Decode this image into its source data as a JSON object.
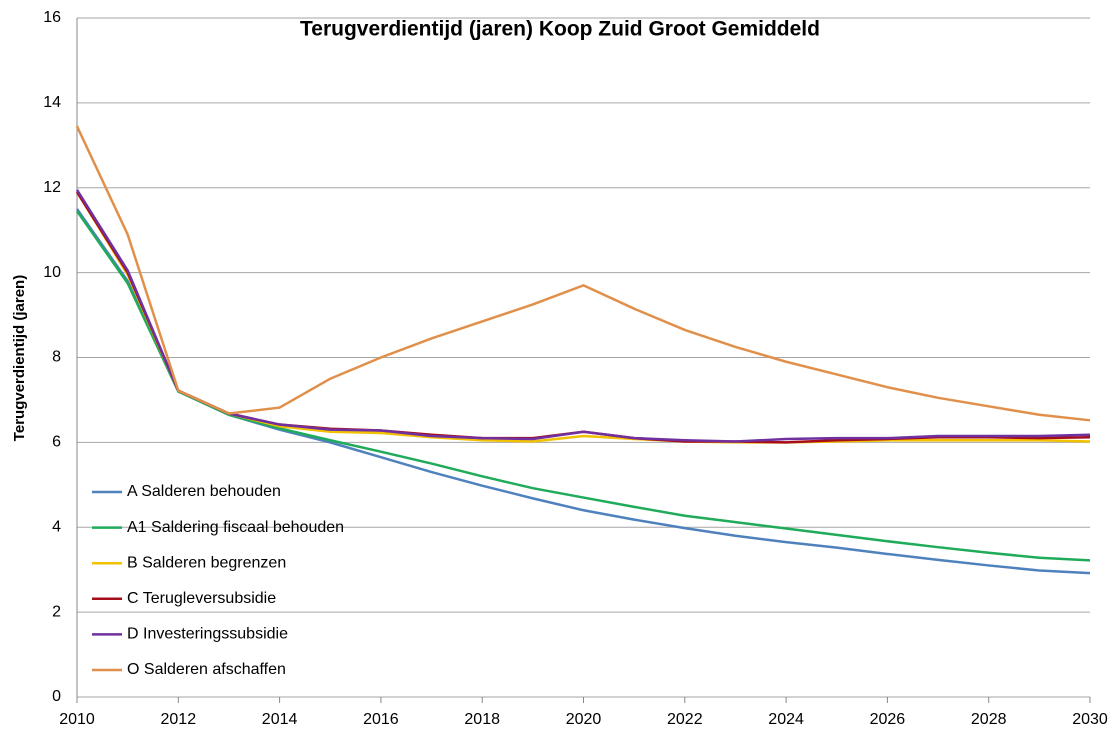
{
  "chart_data": {
    "type": "line",
    "title": "Terugverdientijd (jaren) Koop Zuid Groot Gemiddeld",
    "y_label": "Terugverdientijd (jaren)",
    "x": [
      2010,
      2011,
      2012,
      2013,
      2014,
      2015,
      2016,
      2017,
      2018,
      2019,
      2020,
      2021,
      2022,
      2023,
      2024,
      2025,
      2026,
      2027,
      2028,
      2029,
      2030
    ],
    "xlim": [
      2010,
      2030
    ],
    "xticks": [
      2010,
      2012,
      2014,
      2016,
      2018,
      2020,
      2022,
      2024,
      2026,
      2028,
      2030
    ],
    "ylim": [
      0,
      16
    ],
    "yticks": [
      0,
      2,
      4,
      6,
      8,
      10,
      12,
      14,
      16
    ],
    "grid": true,
    "legend": "bottom-left",
    "series": [
      {
        "name": "A Salderen behouden",
        "color": "#4f81bd",
        "values": [
          11.5,
          9.8,
          7.2,
          6.65,
          6.3,
          6.0,
          5.65,
          5.3,
          4.98,
          4.68,
          4.4,
          4.18,
          3.98,
          3.8,
          3.65,
          3.52,
          3.37,
          3.23,
          3.1,
          2.98,
          2.92
        ]
      },
      {
        "name": "A1 Saldering fiscaal behouden",
        "color": "#1fab5a",
        "values": [
          11.45,
          9.75,
          7.2,
          6.65,
          6.33,
          6.05,
          5.78,
          5.5,
          5.2,
          4.92,
          4.7,
          4.48,
          4.27,
          4.12,
          3.97,
          3.82,
          3.67,
          3.53,
          3.4,
          3.28,
          3.22
        ]
      },
      {
        "name": "B Salderen begrenzen",
        "color": "#f2c200",
        "values": [
          11.9,
          9.95,
          7.22,
          6.68,
          6.38,
          6.25,
          6.22,
          6.12,
          6.05,
          6.02,
          6.15,
          6.08,
          6.02,
          6.0,
          6.0,
          6.02,
          6.05,
          6.05,
          6.05,
          6.05,
          6.02
        ]
      },
      {
        "name": "C Terugleversubsidie",
        "color": "#a50d1b",
        "values": [
          11.9,
          10.0,
          7.22,
          6.68,
          6.42,
          6.32,
          6.28,
          6.18,
          6.1,
          6.1,
          6.25,
          6.1,
          6.02,
          6.02,
          6.0,
          6.05,
          6.08,
          6.12,
          6.12,
          6.1,
          6.12
        ]
      },
      {
        "name": "D Investeringssubsidie",
        "color": "#7030a0",
        "values": [
          11.95,
          10.05,
          7.22,
          6.68,
          6.42,
          6.3,
          6.28,
          6.15,
          6.1,
          6.08,
          6.25,
          6.1,
          6.05,
          6.02,
          6.08,
          6.1,
          6.1,
          6.15,
          6.15,
          6.15,
          6.18
        ]
      },
      {
        "name": "O Salderen afschaffen",
        "color": "#e0904a",
        "values": [
          13.45,
          10.9,
          7.22,
          6.68,
          6.82,
          7.5,
          8.0,
          8.45,
          8.85,
          9.25,
          9.7,
          9.15,
          8.65,
          8.25,
          7.9,
          7.6,
          7.3,
          7.05,
          6.85,
          6.65,
          6.52
        ]
      }
    ]
  }
}
